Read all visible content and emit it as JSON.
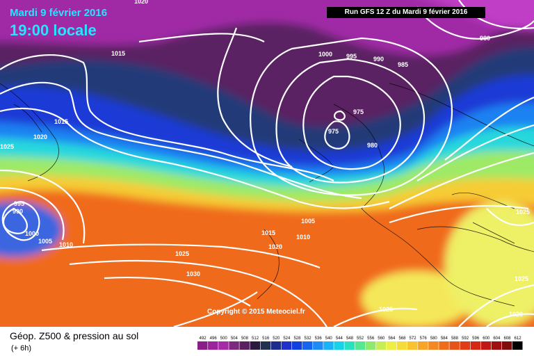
{
  "header": {
    "date": "Mardi 9 février 2016",
    "time": "19:00 locale",
    "run": "Run GFS 12 Z du Mardi 9 février 2016"
  },
  "copyright": "Copyright © 2015 Meteociel.fr",
  "footer": {
    "title": "Géop. Z500 & pression au sol",
    "subtitle": "(+ 6h)"
  },
  "legend": {
    "values": [
      "492",
      "496",
      "500",
      "504",
      "508",
      "512",
      "516",
      "520",
      "524",
      "528",
      "532",
      "536",
      "540",
      "544",
      "548",
      "552",
      "556",
      "560",
      "564",
      "568",
      "572",
      "576",
      "580",
      "584",
      "588",
      "592",
      "596",
      "600",
      "604",
      "608",
      "612"
    ],
    "colors": [
      "#8a1f8a",
      "#9b249c",
      "#a62aa8",
      "#7b2a80",
      "#5a2062",
      "#2a1a3d",
      "#243050",
      "#1c2c8c",
      "#2030c8",
      "#1040e0",
      "#1565f0",
      "#1f8cf5",
      "#1bb3f5",
      "#18d2e8",
      "#2ae0c0",
      "#55e890",
      "#8eea6e",
      "#c8ee55",
      "#eeee44",
      "#f6dc3a",
      "#f8c230",
      "#f8a428",
      "#f48822",
      "#ee6c1c",
      "#e85418",
      "#e03c16",
      "#d42814",
      "#c01814",
      "#a01010",
      "#800c0c",
      "#000000"
    ]
  },
  "isobar_labels": [
    "1020",
    "980",
    "1015",
    "1000",
    "995",
    "990",
    "985",
    "975",
    "975",
    "980",
    "1015",
    "1020",
    "1025",
    "995",
    "990",
    "1000",
    "1005",
    "1010",
    "1025",
    "1030",
    "1015",
    "1005",
    "1010",
    "1020",
    "1025",
    "1025",
    "1025",
    "1020"
  ],
  "map_colors": {
    "land_line": "#000000",
    "isobar": "#ffffff"
  }
}
